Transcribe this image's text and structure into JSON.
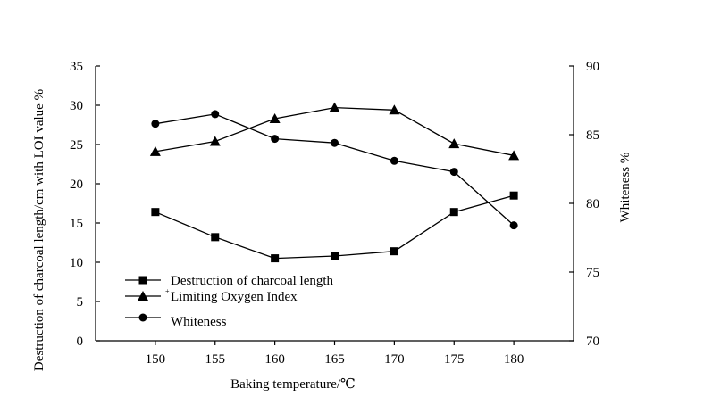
{
  "chart_data": {
    "type": "line",
    "x": [
      150,
      155,
      160,
      165,
      170,
      175,
      180
    ],
    "xlabel": "Baking temperature/℃",
    "ylabel_left": "Destruction of charcoal length/cm with LOI value %",
    "ylabel_right": "Whiteness %",
    "xlim": [
      145,
      185
    ],
    "ylim_left": [
      0,
      35
    ],
    "ylim_right": [
      70,
      90
    ],
    "x_ticks": [
      "150",
      "155",
      "160",
      "165",
      "170",
      "175",
      "180"
    ],
    "y_ticks_left": [
      "0",
      "5",
      "10",
      "15",
      "20",
      "25",
      "30",
      "35"
    ],
    "y_ticks_right": [
      "70",
      "75",
      "80",
      "85",
      "90"
    ],
    "grid": false,
    "legend_position": "bottom-left",
    "series": [
      {
        "name": "Destruction of charcoal length",
        "marker": "square",
        "axis": "left",
        "values": [
          16.4,
          13.2,
          10.5,
          10.8,
          11.4,
          16.4,
          18.5
        ]
      },
      {
        "name": "Limiting Oxygen Index",
        "marker": "triangle",
        "axis": "left",
        "values": [
          24.1,
          25.4,
          28.3,
          29.7,
          29.4,
          25.1,
          23.6
        ]
      },
      {
        "name": "Whiteness",
        "marker": "circle",
        "axis": "right",
        "values": [
          85.8,
          86.5,
          84.7,
          84.4,
          83.1,
          82.3,
          78.4
        ]
      }
    ],
    "legend_note": "+"
  }
}
